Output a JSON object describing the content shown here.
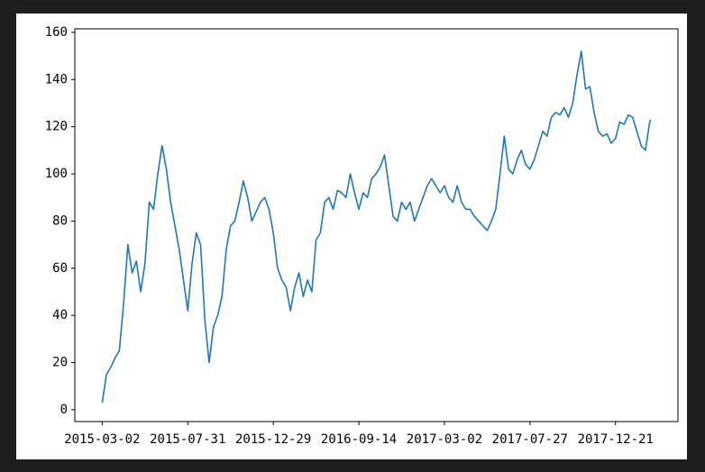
{
  "chart_data": {
    "type": "line",
    "x": [
      0,
      5,
      10,
      15,
      20,
      25,
      30,
      35,
      40,
      45,
      50,
      55,
      60,
      65,
      70,
      75,
      80,
      85,
      90,
      95,
      100,
      105,
      110,
      115,
      120,
      125,
      130,
      135,
      140,
      145,
      150,
      155,
      160,
      165,
      170,
      175,
      180,
      185,
      190,
      195,
      200,
      205,
      210,
      215,
      220,
      225,
      230,
      235,
      240,
      245,
      250,
      255,
      260,
      265,
      270,
      275,
      280,
      285,
      290,
      295,
      300,
      305,
      310,
      315,
      320,
      325,
      330,
      335,
      340,
      345,
      350,
      355,
      360,
      365,
      370,
      375,
      380,
      385,
      390,
      395,
      400,
      405,
      410,
      415,
      420,
      425,
      430,
      435,
      440,
      445,
      450,
      455,
      460,
      465,
      470,
      475,
      480,
      485,
      490,
      495,
      500,
      505,
      510,
      515,
      520,
      525,
      530,
      535,
      540,
      545,
      550,
      555,
      560,
      565,
      570,
      575,
      580,
      585,
      590,
      595,
      600,
      605,
      610,
      615,
      620,
      625,
      630,
      635,
      640,
      641
    ],
    "series": [
      {
        "color": "#1f77b4",
        "values": [
          3,
          15,
          18,
          22,
          25,
          45,
          70,
          58,
          63,
          50,
          62,
          88,
          85,
          100,
          112,
          102,
          88,
          78,
          68,
          55,
          42,
          62,
          75,
          70,
          38,
          20,
          35,
          40,
          48,
          68,
          78,
          80,
          88,
          97,
          90,
          80,
          84,
          88,
          90,
          85,
          75,
          60,
          55,
          52,
          42,
          52,
          58,
          48,
          55,
          50,
          72,
          75,
          88,
          90,
          85,
          93,
          92,
          90,
          100,
          92,
          85,
          92,
          90,
          98,
          100,
          103,
          108,
          95,
          82,
          80,
          88,
          85,
          88,
          80,
          85,
          90,
          95,
          98,
          95,
          92,
          95,
          90,
          88,
          95,
          88,
          85,
          85,
          82,
          80,
          78,
          76,
          80,
          85,
          100,
          116,
          102,
          100,
          106,
          110,
          104,
          102,
          106,
          112,
          118,
          116,
          124,
          126,
          125,
          128,
          124,
          130,
          142,
          152,
          136,
          137,
          126,
          118,
          116,
          117,
          113,
          115,
          122,
          121,
          125,
          124,
          118,
          112,
          110,
          122,
          123
        ]
      }
    ],
    "xlim": [
      -32,
      673
    ],
    "xticks": [
      {
        "value": 0,
        "label": "2015-03-02"
      },
      {
        "value": 100,
        "label": "2015-07-31"
      },
      {
        "value": 200,
        "label": "2015-12-29"
      },
      {
        "value": 300,
        "label": "2016-09-14"
      },
      {
        "value": 400,
        "label": "2017-03-02"
      },
      {
        "value": 500,
        "label": "2017-07-27"
      },
      {
        "value": 600,
        "label": "2017-12-21"
      }
    ],
    "ylim": [
      -5,
      161.5
    ],
    "yticks": [
      0,
      20,
      40,
      60,
      80,
      100,
      120,
      140,
      160
    ]
  }
}
